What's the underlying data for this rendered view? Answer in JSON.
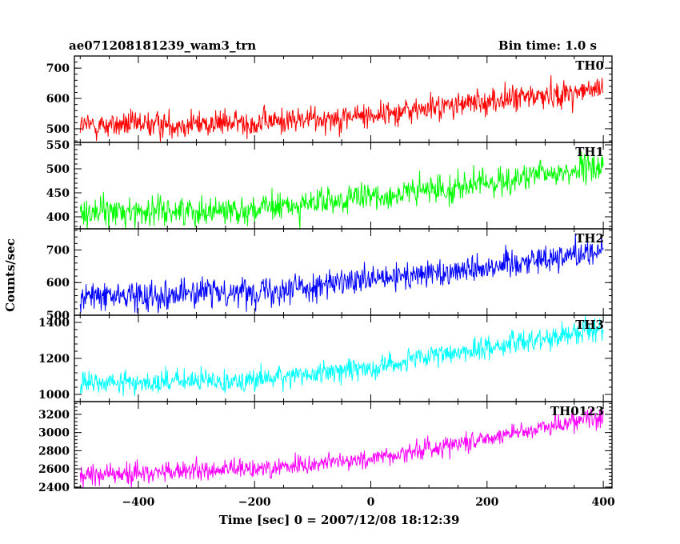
{
  "chart_data": {
    "type": "line",
    "title": "ae071208181239_wam3_trn",
    "subtitle": "Bin time: 1.0 s",
    "xlabel": "Time [sec] 0 = 2007/12/08 18:12:39",
    "ylabel": "Counts/sec",
    "xlim": [
      -510,
      415
    ],
    "x_ticks": [
      -400,
      -200,
      0,
      200,
      400
    ],
    "x_tick_labels": [
      "−400",
      "−200",
      "0",
      "200",
      "400"
    ],
    "panels": [
      {
        "name": "TH0",
        "color": "#ff0000",
        "ylim": [
          455,
          740
        ],
        "y_ticks": [
          500,
          600,
          700
        ],
        "trend": [
          [
            -500,
            510
          ],
          [
            -200,
            520
          ],
          [
            0,
            545
          ],
          [
            200,
            590
          ],
          [
            400,
            630
          ]
        ],
        "noise": 22
      },
      {
        "name": "TH1",
        "color": "#00ff00",
        "ylim": [
          375,
          555
        ],
        "y_ticks": [
          400,
          450,
          500,
          550
        ],
        "trend": [
          [
            -500,
            410
          ],
          [
            -200,
            415
          ],
          [
            0,
            440
          ],
          [
            200,
            470
          ],
          [
            400,
            505
          ]
        ],
        "noise": 15
      },
      {
        "name": "TH2",
        "color": "#0000ff",
        "ylim": [
          500,
          765
        ],
        "y_ticks": [
          500,
          600,
          700
        ],
        "trend": [
          [
            -500,
            555
          ],
          [
            -200,
            575
          ],
          [
            0,
            605
          ],
          [
            200,
            650
          ],
          [
            400,
            700
          ]
        ],
        "noise": 22
      },
      {
        "name": "TH3",
        "color": "#00ffff",
        "ylim": [
          960,
          1440
        ],
        "y_ticks": [
          1000,
          1200,
          1400
        ],
        "trend": [
          [
            -500,
            1060
          ],
          [
            -200,
            1080
          ],
          [
            0,
            1150
          ],
          [
            200,
            1260
          ],
          [
            400,
            1370
          ]
        ],
        "noise": 32
      },
      {
        "name": "TH0123",
        "color": "#ff00ff",
        "ylim": [
          2390,
          3340
        ],
        "y_ticks": [
          2400,
          2600,
          2800,
          3000,
          3200
        ],
        "trend": [
          [
            -500,
            2530
          ],
          [
            -200,
            2600
          ],
          [
            0,
            2710
          ],
          [
            200,
            2940
          ],
          [
            400,
            3190
          ]
        ],
        "noise": 55
      }
    ]
  }
}
